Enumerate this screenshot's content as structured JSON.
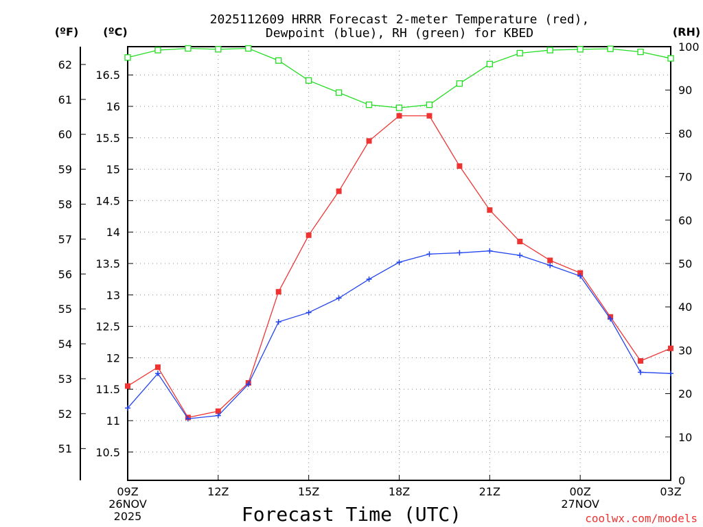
{
  "chart_data": {
    "type": "line",
    "title_line1": "2025112609 HRRR Forecast 2-meter Temperature (red),",
    "title_line2": "Dewpoint (blue), RH (green) for KBED",
    "xlabel": "Forecast Time (UTC)",
    "credit": "coolwx.com/models",
    "unit_f": "(ºF)",
    "unit_c": "(ºC)",
    "unit_rh": "(RH)",
    "x_hours": [
      0,
      1,
      2,
      3,
      4,
      5,
      6,
      7,
      8,
      9,
      10,
      11,
      12,
      13,
      14,
      15,
      16,
      17,
      18
    ],
    "x_ticks": [
      {
        "hour": 0,
        "lines": [
          "09Z",
          "26NOV",
          "2025"
        ]
      },
      {
        "hour": 3,
        "lines": [
          "12Z"
        ]
      },
      {
        "hour": 6,
        "lines": [
          "15Z"
        ]
      },
      {
        "hour": 9,
        "lines": [
          "18Z"
        ]
      },
      {
        "hour": 12,
        "lines": [
          "21Z"
        ]
      },
      {
        "hour": 15,
        "lines": [
          "00Z",
          "27NOV"
        ]
      },
      {
        "hour": 18,
        "lines": [
          "03Z"
        ]
      }
    ],
    "y_celsius": {
      "range": [
        10.05,
        16.95
      ],
      "ticks": [
        "10.5",
        "11",
        "11.5",
        "12",
        "12.5",
        "13",
        "13.5",
        "14",
        "14.5",
        "15",
        "15.5",
        "16",
        "16.5"
      ]
    },
    "y_fahrenheit": {
      "ticks": [
        "51",
        "52",
        "53",
        "54",
        "55",
        "56",
        "57",
        "58",
        "59",
        "60",
        "61",
        "62"
      ]
    },
    "y_rh": {
      "range": [
        0,
        100
      ],
      "ticks": [
        "0",
        "10",
        "20",
        "30",
        "40",
        "50",
        "60",
        "70",
        "80",
        "90",
        "100"
      ]
    },
    "series": [
      {
        "name": "Temperature",
        "axis": "celsius",
        "color": "#ee3333",
        "marker": "filled-square",
        "values": [
          11.55,
          11.85,
          11.05,
          11.15,
          11.6,
          13.05,
          13.95,
          14.65,
          15.45,
          15.85,
          15.85,
          15.05,
          14.35,
          13.85,
          13.55,
          13.35,
          12.65,
          11.95,
          12.15
        ]
      },
      {
        "name": "Dewpoint",
        "axis": "celsius",
        "color": "#2244ee",
        "marker": "plus",
        "values": [
          11.2,
          11.75,
          11.03,
          11.08,
          11.58,
          12.57,
          12.72,
          12.95,
          13.25,
          13.52,
          13.65,
          13.67,
          13.7,
          13.63,
          13.47,
          13.3,
          12.62,
          11.77,
          11.75
        ]
      },
      {
        "name": "RH",
        "axis": "rh",
        "color": "#22dd22",
        "marker": "open-square",
        "values": [
          97.5,
          99.2,
          99.6,
          99.4,
          99.6,
          96.8,
          92.2,
          89.4,
          86.6,
          85.9,
          86.6,
          91.5,
          96.0,
          98.5,
          99.2,
          99.4,
          99.5,
          98.8,
          97.3
        ]
      }
    ]
  }
}
